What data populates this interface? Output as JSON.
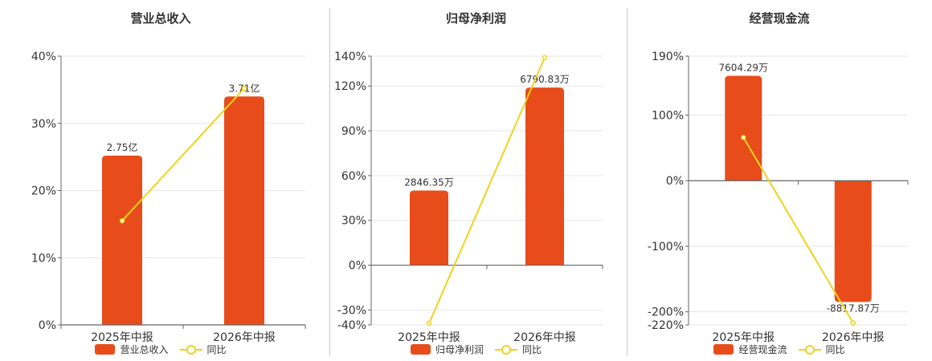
{
  "colors": {
    "bar": "#e84c1a",
    "line": "#f0d31c",
    "grid": "#e6e6e6",
    "axis": "#666666"
  },
  "panels": [
    {
      "title": "营业总收入",
      "legend": {
        "bar": "营业总收入",
        "line": "同比"
      },
      "chart_data": {
        "type": "bar",
        "title": "营业总收入",
        "categories": [
          "2025年中报",
          "2026年中报"
        ],
        "series": [
          {
            "name": "营业总收入",
            "type": "bar",
            "values": [
              25.2,
              34.0
            ],
            "labels": [
              "2.75亿",
              "3.71亿"
            ]
          },
          {
            "name": "同比",
            "type": "line",
            "values": [
              15.5,
              35.2
            ]
          }
        ],
        "yticks": [
          0,
          10,
          20,
          30,
          40
        ],
        "ytick_labels": [
          "0%",
          "10%",
          "20%",
          "30%",
          "40%"
        ],
        "ylim": [
          0,
          40
        ],
        "grid": true
      }
    },
    {
      "title": "归母净利润",
      "legend": {
        "bar": "归母净利润",
        "line": "同比"
      },
      "chart_data": {
        "type": "bar",
        "title": "归母净利润",
        "categories": [
          "2025年中报",
          "2026年中报"
        ],
        "series": [
          {
            "name": "归母净利润",
            "type": "bar",
            "values": [
              50,
              119
            ],
            "labels": [
              "2846.35万",
              "6790.83万"
            ]
          },
          {
            "name": "同比",
            "type": "line",
            "values": [
              -39,
              139
            ]
          }
        ],
        "yticks": [
          -40,
          -30,
          0,
          30,
          60,
          90,
          120,
          140
        ],
        "ytick_labels": [
          "-40%",
          "-30%",
          "0%",
          "30%",
          "60%",
          "90%",
          "120%",
          "140%"
        ],
        "ylim": [
          -40,
          140
        ],
        "grid": true
      }
    },
    {
      "title": "经营现金流",
      "legend": {
        "bar": "经营现金流",
        "line": "同比"
      },
      "chart_data": {
        "type": "bar",
        "title": "经营现金流",
        "categories": [
          "2025年中报",
          "2026年中报"
        ],
        "series": [
          {
            "name": "经营现金流",
            "type": "bar",
            "values": [
              160,
              -185
            ],
            "labels": [
              "7604.29万",
              "-8817.87万"
            ]
          },
          {
            "name": "同比",
            "type": "line",
            "values": [
              66,
              -217
            ]
          }
        ],
        "yticks": [
          -220,
          -200,
          -100,
          0,
          100,
          190
        ],
        "ytick_labels": [
          "-220%",
          "-200%",
          "-100%",
          "0%",
          "100%",
          "190%"
        ],
        "ylim": [
          -220,
          190
        ],
        "grid": true
      }
    }
  ]
}
